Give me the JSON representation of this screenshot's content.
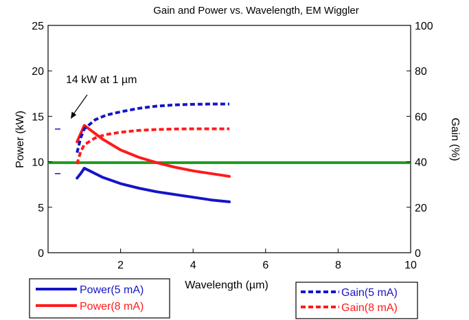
{
  "chart_data": {
    "type": "line",
    "title": "Gain and Power vs. Wavelength, EM Wiggler",
    "xlabel": "Wavelength (µm)",
    "ylabel_left": "Power (kW)",
    "ylabel_right": "Gain (%)",
    "xlim": [
      0,
      10
    ],
    "ylim_left": [
      0,
      25
    ],
    "ylim_right": [
      0,
      100
    ],
    "x_ticks": [
      2,
      4,
      6,
      8,
      10
    ],
    "y_left_ticks": [
      0,
      5,
      10,
      15,
      20,
      25
    ],
    "y_right_ticks": [
      0,
      20,
      40,
      60,
      80,
      100
    ],
    "grid": false,
    "annotation": {
      "text": "14 kW at 1 µm",
      "x": 1.0,
      "y": 14.0
    },
    "reference_line": {
      "axis": "left",
      "y": 9.9,
      "color": "#1f9a1f"
    },
    "series": [
      {
        "name": "Power(5 mA)",
        "axis": "left",
        "style": "solid",
        "color": "#1414c8",
        "x": [
          0.8,
          0.9,
          1.0,
          1.5,
          2.0,
          2.5,
          3.0,
          3.5,
          4.0,
          4.5,
          5.0
        ],
        "y": [
          8.2,
          8.7,
          9.3,
          8.3,
          7.6,
          7.1,
          6.7,
          6.4,
          6.1,
          5.8,
          5.6
        ]
      },
      {
        "name": "Power(8 mA)",
        "axis": "left",
        "style": "solid",
        "color": "#ff1a1a",
        "x": [
          0.8,
          0.9,
          1.0,
          1.5,
          2.0,
          2.5,
          3.0,
          3.5,
          4.0,
          4.5,
          5.0
        ],
        "y": [
          12.2,
          13.1,
          14.0,
          12.5,
          11.3,
          10.5,
          9.9,
          9.4,
          9.0,
          8.7,
          8.4
        ]
      },
      {
        "name": "Gain(5 mA)",
        "axis": "right",
        "style": "dashed",
        "color": "#1414c8",
        "x": [
          0.8,
          0.9,
          1.0,
          1.3,
          1.6,
          2.0,
          2.5,
          3.0,
          3.5,
          4.0,
          4.5,
          5.0
        ],
        "y": [
          44.0,
          50.5,
          54.5,
          58.5,
          60.5,
          62.0,
          63.5,
          64.5,
          65.0,
          65.3,
          65.4,
          65.4
        ]
      },
      {
        "name": "Gain(8 mA)",
        "axis": "right",
        "style": "dashed",
        "color": "#ff1a1a",
        "x": [
          0.8,
          0.9,
          1.0,
          1.3,
          1.6,
          2.0,
          2.5,
          3.0,
          3.5,
          4.0,
          4.5,
          5.0
        ],
        "y": [
          39.0,
          44.5,
          47.5,
          50.5,
          52.0,
          53.0,
          53.8,
          54.2,
          54.4,
          54.5,
          54.5,
          54.5
        ]
      }
    ],
    "legends": [
      {
        "position": "bottom-left",
        "entries": [
          "Power(5 mA)",
          "Power(8 mA)"
        ]
      },
      {
        "position": "bottom-right",
        "entries": [
          "Gain(5 mA)",
          "Gain(8 mA)"
        ]
      }
    ]
  }
}
